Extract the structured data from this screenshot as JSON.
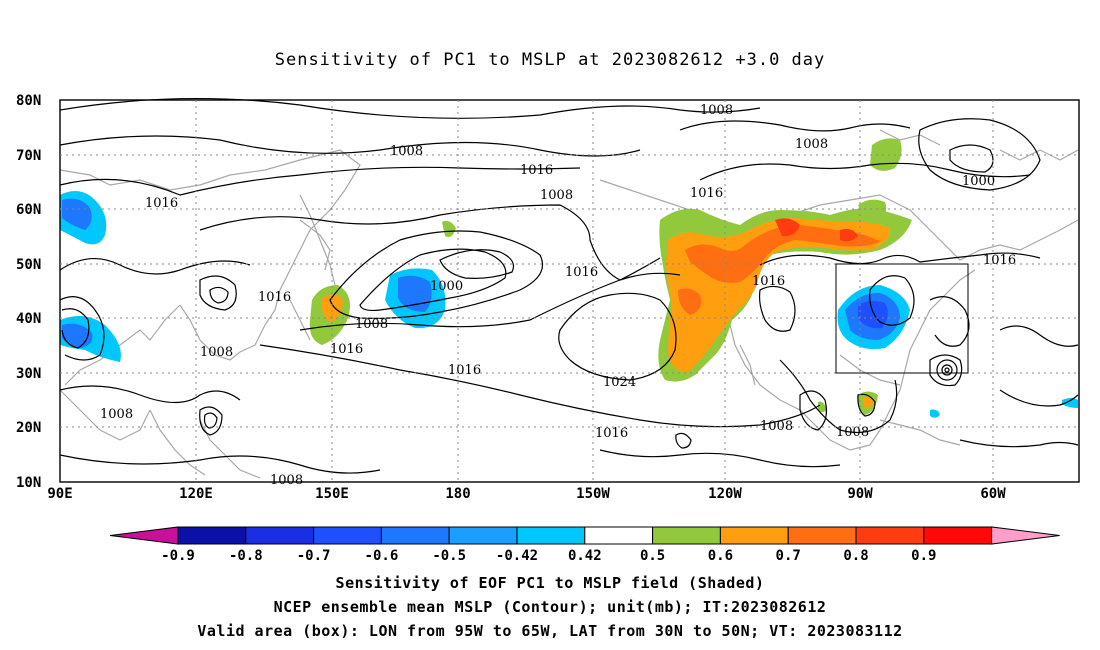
{
  "title": "Sensitivity of PC1 to MSLP at 2023082612 +3.0 day",
  "lat_labels": [
    "80N",
    "70N",
    "60N",
    "50N",
    "40N",
    "30N",
    "20N",
    "10N"
  ],
  "lon_labels": [
    "90E",
    "120E",
    "150E",
    "180",
    "150W",
    "120W",
    "90W",
    "60W"
  ],
  "contour_labels": [
    {
      "text": "1008"
    },
    {
      "text": "1008"
    },
    {
      "text": "1016"
    },
    {
      "text": "1008"
    },
    {
      "text": "1000"
    },
    {
      "text": "1016"
    },
    {
      "text": "1016"
    },
    {
      "text": "1008"
    },
    {
      "text": "1016"
    },
    {
      "text": "1016"
    },
    {
      "text": "1024"
    },
    {
      "text": "1016"
    },
    {
      "text": "1016"
    },
    {
      "text": "1016"
    },
    {
      "text": "1008"
    },
    {
      "text": "1008"
    },
    {
      "text": "1016"
    },
    {
      "text": "1000"
    },
    {
      "text": "1008"
    },
    {
      "text": "1008"
    },
    {
      "text": "1008"
    },
    {
      "text": "1008"
    }
  ],
  "colorbar": {
    "labels": [
      "-0.9",
      "-0.8",
      "-0.7",
      "-0.6",
      "-0.5",
      "-0.42",
      "0.42",
      "0.5",
      "0.6",
      "0.7",
      "0.8",
      "0.9"
    ],
    "colors": {
      "low_extend": "#c8109a",
      "bins": [
        "#0a10a8",
        "#1a2ee6",
        "#1e50ff",
        "#1e78ff",
        "#19a0ff",
        "#00c8ff",
        "#ffffff",
        "#92c83c",
        "#ff9f10",
        "#ff6e10",
        "#ff3c10",
        "#ff0808"
      ],
      "high_extend": "#ff9ec8"
    }
  },
  "valid_box": {
    "lon_min": "95W",
    "lon_max": "65W",
    "lat_min": "30N",
    "lat_max": "50N"
  },
  "captions": {
    "line1": "Sensitivity of EOF PC1 to MSLP field (Shaded)",
    "line2": "NCEP ensemble mean MSLP (Contour); unit(mb); IT:2023082612",
    "line3": "Valid area (box): LON from 95W to 65W, LAT from 30N to 50N; VT: 2023083112"
  }
}
